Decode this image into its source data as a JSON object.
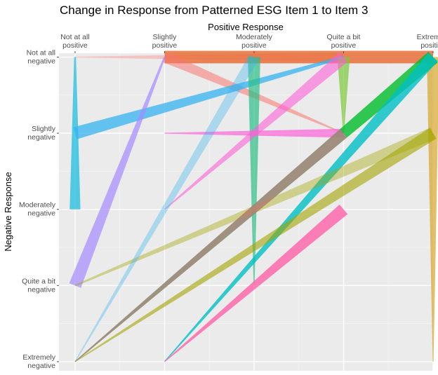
{
  "chart_data": {
    "type": "parallel-flow",
    "title": "Change in Response from Patterned ESG Item 1 to Item 3",
    "xlabel": "Positive Response",
    "ylabel": "Negative Response",
    "x_ticks": [
      [
        "Not at all",
        "positive"
      ],
      [
        "Slightly",
        "positive"
      ],
      [
        "Moderately",
        "positive"
      ],
      [
        "Quite a bit",
        "positive"
      ],
      [
        "Extremely",
        "positive"
      ]
    ],
    "y_ticks": [
      [
        "Not at all",
        "negative"
      ],
      [
        "Slightly",
        "negative"
      ],
      [
        "Moderately",
        "negative"
      ],
      [
        "Quite a bit",
        "negative"
      ],
      [
        "Extremely",
        "negative"
      ]
    ],
    "x_range": [
      0.82,
      5.0
    ],
    "y_range": [
      0.88,
      5.05
    ],
    "grid": true,
    "segments": [
      {
        "from": [
          1,
          5
        ],
        "to": [
          4,
          5
        ],
        "w_start": 0.01,
        "w_end": 0.1,
        "color": "#F8766D",
        "opacity": 0.4
      },
      {
        "from": [
          2,
          5
        ],
        "to": [
          5,
          5
        ],
        "w_start": 0.14,
        "w_end": 0.14,
        "color": "#E8703B",
        "opacity": 0.85
      },
      {
        "from": [
          2,
          5
        ],
        "to": [
          4,
          4
        ],
        "w_start": 0.12,
        "w_end": 0.01,
        "color": "#F8766D",
        "opacity": 0.55
      },
      {
        "from": [
          1,
          5
        ],
        "to": [
          1,
          3
        ],
        "w_start": 0.02,
        "w_end": 0.12,
        "color": "#2BC1E0",
        "opacity": 0.8
      },
      {
        "from": [
          1,
          4
        ],
        "to": [
          4,
          5
        ],
        "w_start": 0.14,
        "w_end": 0.03,
        "color": "#35B3F0",
        "opacity": 0.75
      },
      {
        "from": [
          1,
          2
        ],
        "to": [
          2,
          5
        ],
        "w_start": 0.14,
        "w_end": 0.02,
        "color": "#A58AFF",
        "opacity": 0.7
      },
      {
        "from": [
          3,
          5
        ],
        "to": [
          3,
          2
        ],
        "w_start": 0.14,
        "w_end": 0.01,
        "color": "#2BBE88",
        "opacity": 0.7
      },
      {
        "from": [
          4,
          5
        ],
        "to": [
          4,
          4
        ],
        "w_start": 0.14,
        "w_end": 0.01,
        "color": "#7CC83C",
        "opacity": 0.7
      },
      {
        "from": [
          5,
          5
        ],
        "to": [
          5,
          1
        ],
        "w_start": 0.14,
        "w_end": 0.01,
        "color": "#D4A52A",
        "opacity": 0.7
      },
      {
        "from": [
          2,
          4
        ],
        "to": [
          4,
          4
        ],
        "w_start": 0.01,
        "w_end": 0.1,
        "color": "#FB61D7",
        "opacity": 0.7
      },
      {
        "from": [
          2,
          3
        ],
        "to": [
          4,
          5
        ],
        "w_start": 0.01,
        "w_end": 0.14,
        "color": "#FB61D7",
        "opacity": 0.6
      },
      {
        "from": [
          1,
          1
        ],
        "to": [
          5,
          5
        ],
        "w_start": 0.01,
        "w_end": 0.16,
        "color": "#00BE2B",
        "opacity": 0.8
      },
      {
        "from": [
          2,
          1
        ],
        "to": [
          5,
          5
        ],
        "w_start": 0.01,
        "w_end": 0.14,
        "color": "#00BFC4",
        "opacity": 0.8
      },
      {
        "from": [
          1,
          1
        ],
        "to": [
          5,
          4
        ],
        "w_start": 0.01,
        "w_end": 0.14,
        "color": "#A3A500",
        "opacity": 0.6
      },
      {
        "from": [
          1,
          2
        ],
        "to": [
          5,
          4
        ],
        "w_start": 0.02,
        "w_end": 0.14,
        "color": "#A3A500",
        "opacity": 0.4
      },
      {
        "from": [
          1,
          1
        ],
        "to": [
          4,
          4
        ],
        "w_start": 0.01,
        "w_end": 0.12,
        "color": "#FF61A8",
        "opacity": 0.55
      },
      {
        "from": [
          2,
          1
        ],
        "to": [
          4,
          3
        ],
        "w_start": 0.01,
        "w_end": 0.14,
        "color": "#FF61A8",
        "opacity": 0.8
      },
      {
        "from": [
          1,
          1
        ],
        "to": [
          3,
          5
        ],
        "w_start": 0.01,
        "w_end": 0.12,
        "color": "#35B3F0",
        "opacity": 0.35
      }
    ]
  }
}
